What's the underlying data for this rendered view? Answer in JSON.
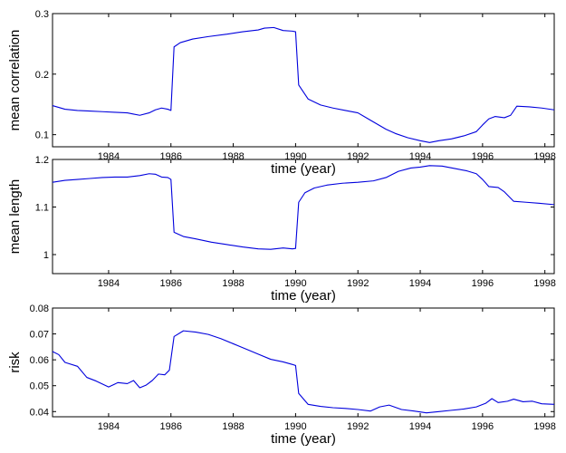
{
  "chart_data": [
    {
      "type": "line",
      "xlabel": "time (year)",
      "ylabel": "mean correlation",
      "xlim": [
        1982.2,
        1998.3
      ],
      "ylim": [
        0.08,
        0.3
      ],
      "xticks": [
        1984,
        1986,
        1988,
        1990,
        1992,
        1994,
        1996,
        1998
      ],
      "yticks": [
        0.1,
        0.2,
        0.3
      ],
      "ytick_labels": [
        "0.1",
        "0.2",
        "0.3"
      ],
      "grid": false,
      "line_color": "#0000dd",
      "x": [
        1982.2,
        1982.4,
        1982.6,
        1983.0,
        1983.4,
        1983.8,
        1984.2,
        1984.6,
        1984.8,
        1985.0,
        1985.3,
        1985.5,
        1985.7,
        1985.9,
        1986.0,
        1986.1,
        1986.3,
        1986.7,
        1987.2,
        1987.8,
        1988.3,
        1988.8,
        1989.0,
        1989.3,
        1989.6,
        1989.9,
        1990.0,
        1990.1,
        1990.4,
        1990.8,
        1991.2,
        1991.6,
        1992.0,
        1992.4,
        1992.6,
        1992.9,
        1993.2,
        1993.6,
        1994.0,
        1994.3,
        1994.6,
        1995.0,
        1995.4,
        1995.8,
        1996.0,
        1996.2,
        1996.4,
        1996.7,
        1996.9,
        1997.1,
        1997.5,
        1997.9,
        1998.3
      ],
      "y": [
        0.148,
        0.145,
        0.142,
        0.14,
        0.139,
        0.138,
        0.137,
        0.136,
        0.134,
        0.132,
        0.136,
        0.141,
        0.144,
        0.142,
        0.14,
        0.245,
        0.252,
        0.258,
        0.262,
        0.266,
        0.27,
        0.273,
        0.276,
        0.277,
        0.272,
        0.271,
        0.27,
        0.182,
        0.159,
        0.149,
        0.144,
        0.14,
        0.136,
        0.124,
        0.118,
        0.109,
        0.102,
        0.095,
        0.09,
        0.087,
        0.09,
        0.093,
        0.098,
        0.105,
        0.116,
        0.126,
        0.13,
        0.128,
        0.132,
        0.147,
        0.146,
        0.144,
        0.141
      ]
    },
    {
      "type": "line",
      "xlabel": "time (year)",
      "ylabel": "mean length",
      "xlim": [
        1982.2,
        1998.3
      ],
      "ylim": [
        0.96,
        1.2
      ],
      "xticks": [
        1984,
        1986,
        1988,
        1990,
        1992,
        1994,
        1996,
        1998
      ],
      "yticks": [
        1.0,
        1.1,
        1.2
      ],
      "ytick_labels": [
        "1",
        "1.1",
        "1.2"
      ],
      "grid": false,
      "line_color": "#0000dd",
      "x": [
        1982.2,
        1982.6,
        1983.0,
        1983.4,
        1983.8,
        1984.2,
        1984.6,
        1985.0,
        1985.3,
        1985.5,
        1985.7,
        1985.9,
        1986.0,
        1986.1,
        1986.4,
        1986.8,
        1987.3,
        1987.8,
        1988.3,
        1988.8,
        1989.2,
        1989.6,
        1989.9,
        1990.0,
        1990.1,
        1990.3,
        1990.6,
        1991.0,
        1991.5,
        1992.0,
        1992.5,
        1992.9,
        1993.3,
        1993.7,
        1994.0,
        1994.3,
        1994.7,
        1995.1,
        1995.5,
        1995.8,
        1996.0,
        1996.2,
        1996.5,
        1996.7,
        1997.0,
        1997.4,
        1997.8,
        1998.3
      ],
      "y": [
        1.152,
        1.156,
        1.158,
        1.16,
        1.162,
        1.163,
        1.163,
        1.166,
        1.17,
        1.169,
        1.163,
        1.162,
        1.158,
        1.047,
        1.038,
        1.033,
        1.026,
        1.021,
        1.016,
        1.012,
        1.011,
        1.014,
        1.012,
        1.013,
        1.11,
        1.13,
        1.14,
        1.146,
        1.15,
        1.152,
        1.155,
        1.162,
        1.175,
        1.182,
        1.184,
        1.187,
        1.186,
        1.181,
        1.176,
        1.17,
        1.158,
        1.143,
        1.141,
        1.132,
        1.112,
        1.11,
        1.108,
        1.105
      ]
    },
    {
      "type": "line",
      "xlabel": "time (year)",
      "ylabel": "risk",
      "xlim": [
        1982.2,
        1998.3
      ],
      "ylim": [
        0.038,
        0.08
      ],
      "xticks": [
        1984,
        1986,
        1988,
        1990,
        1992,
        1994,
        1996,
        1998
      ],
      "yticks": [
        0.04,
        0.05,
        0.06,
        0.07,
        0.08
      ],
      "ytick_labels": [
        "0.04",
        "0.05",
        "0.06",
        "0.07",
        "0.08"
      ],
      "grid": false,
      "line_color": "#0000dd",
      "x": [
        1982.2,
        1982.4,
        1982.6,
        1983.0,
        1983.3,
        1983.6,
        1984.0,
        1984.3,
        1984.6,
        1984.8,
        1985.0,
        1985.2,
        1985.4,
        1985.6,
        1985.8,
        1985.95,
        1986.1,
        1986.4,
        1986.8,
        1987.2,
        1987.6,
        1988.0,
        1988.4,
        1988.8,
        1989.2,
        1989.6,
        1989.9,
        1990.0,
        1990.1,
        1990.4,
        1990.8,
        1991.2,
        1991.6,
        1992.0,
        1992.4,
        1992.7,
        1993.0,
        1993.4,
        1993.8,
        1994.2,
        1994.6,
        1995.0,
        1995.4,
        1995.8,
        1996.1,
        1996.3,
        1996.5,
        1996.8,
        1997.0,
        1997.3,
        1997.6,
        1997.9,
        1998.3
      ],
      "y": [
        0.0632,
        0.062,
        0.059,
        0.0575,
        0.0532,
        0.0518,
        0.0495,
        0.0512,
        0.0508,
        0.052,
        0.0492,
        0.0502,
        0.052,
        0.0545,
        0.0542,
        0.056,
        0.069,
        0.0712,
        0.0707,
        0.0698,
        0.0682,
        0.0662,
        0.0642,
        0.0622,
        0.0602,
        0.0592,
        0.0582,
        0.0578,
        0.047,
        0.0428,
        0.042,
        0.0415,
        0.0412,
        0.0408,
        0.0402,
        0.0418,
        0.0425,
        0.0408,
        0.0402,
        0.0395,
        0.04,
        0.0405,
        0.041,
        0.0418,
        0.0432,
        0.045,
        0.0435,
        0.044,
        0.0448,
        0.0438,
        0.044,
        0.043,
        0.0428
      ]
    }
  ]
}
